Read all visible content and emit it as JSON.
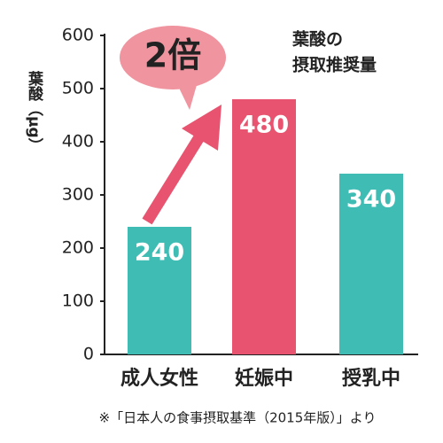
{
  "chart_data": {
    "type": "bar",
    "subtitle": [
      "葉酸の",
      "摂取推奨量"
    ],
    "y_label": "葉酸（μg）",
    "annotation": "2倍",
    "footnote": "※「日本人の食事摂取基準（2015年版）」より",
    "categories": [
      "成人女性",
      "妊娠中",
      "授乳中"
    ],
    "values": [
      240,
      480,
      340
    ],
    "colors": [
      "#3fbcb4",
      "#e8536f",
      "#3fbcb4"
    ],
    "ylim": [
      0,
      600
    ],
    "yticks": [
      0,
      100,
      200,
      300,
      400,
      500,
      600
    ]
  }
}
